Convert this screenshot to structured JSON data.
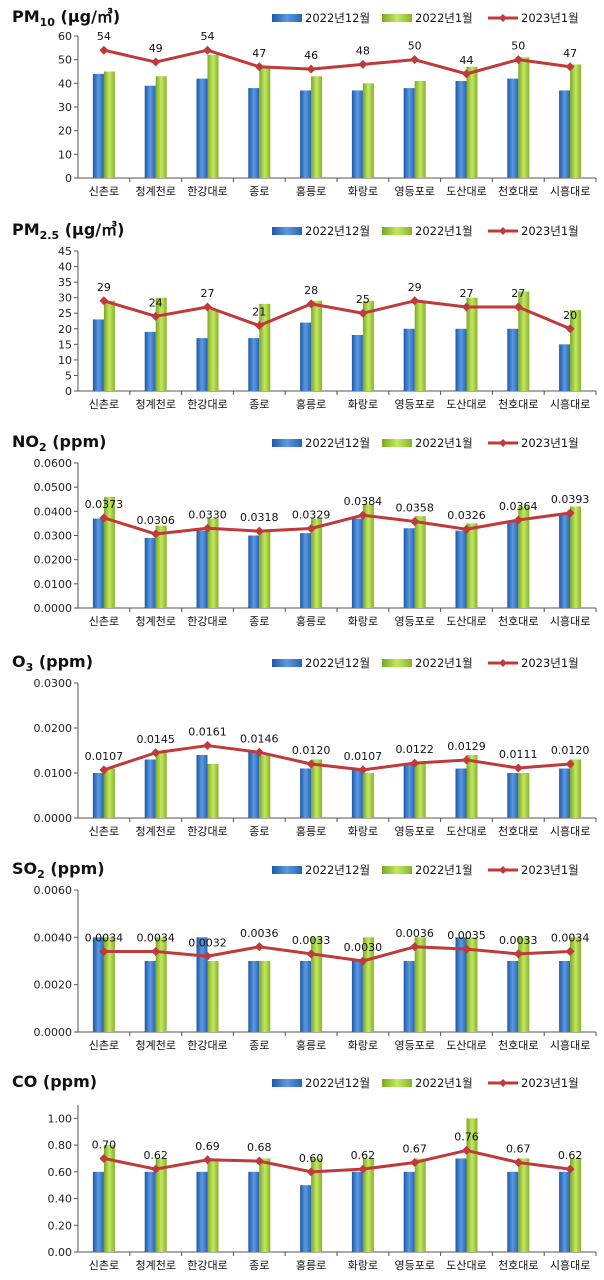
{
  "colors": {
    "bar1": "#3a78c8",
    "bar2": "#9cc83a",
    "line": "#c0393b"
  },
  "legend": [
    "2022년12월",
    "2022년1월",
    "2023년1월"
  ],
  "chart_data": [
    {
      "type": "bar",
      "title": "PM10 (㎍/㎥)",
      "title_main": "PM",
      "title_sub": "10",
      "title_rest": " (μg/㎥)",
      "categories": [
        "신촌로",
        "청계천로",
        "한강대로",
        "종로",
        "홍릉로",
        "화랑로",
        "영등포로",
        "도산대로",
        "천호대로",
        "시흥대로"
      ],
      "series": [
        {
          "name": "2022년12월",
          "kind": "bar",
          "values": [
            44,
            39,
            42,
            38,
            37,
            37,
            38,
            41,
            42,
            37
          ]
        },
        {
          "name": "2022년1월",
          "kind": "bar",
          "values": [
            45,
            43,
            52,
            47,
            43,
            40,
            41,
            47,
            51,
            48
          ]
        },
        {
          "name": "2023년1월",
          "kind": "line",
          "values": [
            54,
            49,
            54,
            47,
            46,
            48,
            50,
            44,
            50,
            47
          ]
        }
      ],
      "data_labels": [
        "54",
        "49",
        "54",
        "47",
        "46",
        "48",
        "50",
        "44",
        "50",
        "47"
      ],
      "ylim": [
        0,
        60
      ],
      "ticks": [
        "0",
        "10",
        "20",
        "30",
        "40",
        "50",
        "60"
      ],
      "grid": false,
      "legend_position": "top-right"
    },
    {
      "type": "bar",
      "title": "PM2.5 (㎍/㎥)",
      "title_main": "PM",
      "title_sub": "2.5",
      "title_rest": " (μg/㎥)",
      "categories": [
        "신촌로",
        "청계천로",
        "한강대로",
        "종로",
        "홍릉로",
        "화랑로",
        "영등포로",
        "도산대로",
        "천호대로",
        "시흥대로"
      ],
      "series": [
        {
          "name": "2022년12월",
          "kind": "bar",
          "values": [
            23,
            19,
            17,
            17,
            22,
            18,
            20,
            20,
            20,
            15
          ]
        },
        {
          "name": "2022년1월",
          "kind": "bar",
          "values": [
            29,
            30,
            26,
            28,
            29,
            29,
            29,
            30,
            32,
            26
          ]
        },
        {
          "name": "2023년1월",
          "kind": "line",
          "values": [
            29,
            24,
            27,
            21,
            28,
            25,
            29,
            27,
            27,
            20
          ]
        }
      ],
      "data_labels": [
        "29",
        "24",
        "27",
        "21",
        "28",
        "25",
        "29",
        "27",
        "27",
        "20"
      ],
      "ylim": [
        0,
        45
      ],
      "ticks": [
        "0",
        "5",
        "10",
        "15",
        "20",
        "25",
        "30",
        "35",
        "40",
        "45"
      ],
      "grid": false,
      "legend_position": "top-right"
    },
    {
      "type": "bar",
      "title": "NO2 (ppm)",
      "title_main": "NO",
      "title_sub": "2",
      "title_rest": " (ppm)",
      "categories": [
        "신촌로",
        "청계천로",
        "한강대로",
        "종로",
        "홍릉로",
        "화랑로",
        "영등포로",
        "도산대로",
        "천호대로",
        "시흥대로"
      ],
      "series": [
        {
          "name": "2022년12월",
          "kind": "bar",
          "values": [
            0.037,
            0.029,
            0.032,
            0.03,
            0.031,
            0.037,
            0.033,
            0.032,
            0.036,
            0.039
          ]
        },
        {
          "name": "2022년1월",
          "kind": "bar",
          "values": [
            0.046,
            0.034,
            0.037,
            0.032,
            0.037,
            0.043,
            0.038,
            0.035,
            0.042,
            0.042
          ]
        },
        {
          "name": "2023년1월",
          "kind": "line",
          "values": [
            0.0373,
            0.0306,
            0.033,
            0.0318,
            0.0329,
            0.0384,
            0.0358,
            0.0326,
            0.0364,
            0.0393
          ]
        }
      ],
      "data_labels": [
        "0.0373",
        "0.0306",
        "0.0330",
        "0.0318",
        "0.0329",
        "0.0384",
        "0.0358",
        "0.0326",
        "0.0364",
        "0.0393"
      ],
      "ylim": [
        0,
        0.06
      ],
      "ticks": [
        "0.0000",
        "0.0100",
        "0.0200",
        "0.0300",
        "0.0400",
        "0.0500",
        "0.0600"
      ],
      "grid": false,
      "legend_position": "top-right"
    },
    {
      "type": "bar",
      "title": "O3 (ppm)",
      "title_main": "O",
      "title_sub": "3",
      "title_rest": " (ppm)",
      "categories": [
        "신촌로",
        "청계천로",
        "한강대로",
        "종로",
        "홍릉로",
        "화랑로",
        "영등포로",
        "도산대로",
        "천호대로",
        "시흥대로"
      ],
      "series": [
        {
          "name": "2022년12월",
          "kind": "bar",
          "values": [
            0.01,
            0.013,
            0.014,
            0.015,
            0.011,
            0.011,
            0.012,
            0.011,
            0.01,
            0.011
          ]
        },
        {
          "name": "2022년1월",
          "kind": "bar",
          "values": [
            0.011,
            0.015,
            0.012,
            0.014,
            0.013,
            0.01,
            0.012,
            0.014,
            0.01,
            0.013
          ]
        },
        {
          "name": "2023년1월",
          "kind": "line",
          "values": [
            0.0107,
            0.0145,
            0.0161,
            0.0146,
            0.012,
            0.0107,
            0.0122,
            0.0129,
            0.0111,
            0.012
          ]
        }
      ],
      "data_labels": [
        "0.0107",
        "0.0145",
        "0.0161",
        "0.0146",
        "0.0120",
        "0.0107",
        "0.0122",
        "0.0129",
        "0.0111",
        "0.0120"
      ],
      "ylim": [
        0,
        0.03
      ],
      "ticks": [
        "0.0000",
        "0.0100",
        "0.0200",
        "0.0300"
      ],
      "grid": false,
      "legend_position": "top-right"
    },
    {
      "type": "bar",
      "title": "SO2 (ppm)",
      "title_main": "SO",
      "title_sub": "2",
      "title_rest": " (ppm)",
      "categories": [
        "신촌로",
        "청계천로",
        "한강대로",
        "종로",
        "홍릉로",
        "화랑로",
        "영등포로",
        "도산대로",
        "천호대로",
        "시흥대로"
      ],
      "series": [
        {
          "name": "2022년12월",
          "kind": "bar",
          "values": [
            0.004,
            0.003,
            0.004,
            0.003,
            0.003,
            0.003,
            0.003,
            0.004,
            0.003,
            0.003
          ]
        },
        {
          "name": "2022년1월",
          "kind": "bar",
          "values": [
            0.004,
            0.004,
            0.003,
            0.003,
            0.004,
            0.004,
            0.004,
            0.004,
            0.004,
            0.004
          ]
        },
        {
          "name": "2023년1월",
          "kind": "line",
          "values": [
            0.0034,
            0.0034,
            0.0032,
            0.0036,
            0.0033,
            0.003,
            0.0036,
            0.0035,
            0.0033,
            0.0034
          ]
        }
      ],
      "data_labels": [
        "0.0034",
        "0.0034",
        "0.0032",
        "0.0036",
        "0.0033",
        "0.0030",
        "0.0036",
        "0.0035",
        "0.0033",
        "0.0034"
      ],
      "ylim": [
        0,
        0.006
      ],
      "ticks": [
        "0.0000",
        "0.0020",
        "0.0040",
        "0.0060"
      ],
      "grid": false,
      "legend_position": "top-right"
    },
    {
      "type": "bar",
      "title": "CO (ppm)",
      "title_main": "CO",
      "title_sub": "",
      "title_rest": " (ppm)",
      "categories": [
        "신촌로",
        "청계천로",
        "한강대로",
        "종로",
        "홍릉로",
        "화랑로",
        "영등포로",
        "도산대로",
        "천호대로",
        "시흥대로"
      ],
      "series": [
        {
          "name": "2022년12월",
          "kind": "bar",
          "values": [
            0.6,
            0.6,
            0.6,
            0.6,
            0.5,
            0.6,
            0.6,
            0.7,
            0.6,
            0.6
          ]
        },
        {
          "name": "2022년1월",
          "kind": "bar",
          "values": [
            0.8,
            0.7,
            0.7,
            0.7,
            0.7,
            0.7,
            0.7,
            1.0,
            0.7,
            0.7
          ]
        },
        {
          "name": "2023년1월",
          "kind": "line",
          "values": [
            0.7,
            0.62,
            0.69,
            0.68,
            0.6,
            0.62,
            0.67,
            0.76,
            0.67,
            0.62
          ]
        }
      ],
      "data_labels": [
        "0.70",
        "0.62",
        "0.69",
        "0.68",
        "0.60",
        "0.62",
        "0.67",
        "0.76",
        "0.67",
        "0.62"
      ],
      "ylim": [
        0,
        1.1
      ],
      "ticks": [
        "0.00",
        "0.20",
        "0.40",
        "0.60",
        "0.80",
        "1.00"
      ],
      "grid": false,
      "legend_position": "top-right"
    }
  ]
}
